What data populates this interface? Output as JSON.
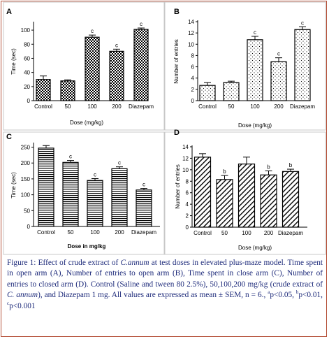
{
  "chart_data": [
    {
      "panel": "A",
      "type": "bar",
      "pattern": "checker",
      "categories": [
        "Control",
        "50",
        "100",
        "200",
        "Diazepam"
      ],
      "values": [
        30,
        28,
        90,
        70,
        101
      ],
      "errors": [
        5,
        1.5,
        3,
        3,
        2
      ],
      "sig": [
        "",
        "",
        "c",
        "c",
        "c"
      ],
      "ylim": [
        0,
        110
      ],
      "yticks": [
        0,
        20,
        40,
        60,
        80,
        100
      ],
      "ylabel": "Time (sec)",
      "xlabel": "Dose (mg/kg)"
    },
    {
      "panel": "B",
      "type": "bar",
      "pattern": "dots",
      "categories": [
        "Control",
        "50",
        "100",
        "200",
        "Diazepam"
      ],
      "values": [
        2.7,
        3.2,
        10.8,
        6.9,
        12.6
      ],
      "errors": [
        0.5,
        0.25,
        0.6,
        0.7,
        0.5
      ],
      "sig": [
        "",
        "",
        "c",
        "c",
        "c"
      ],
      "ylim": [
        0,
        14
      ],
      "yticks": [
        0,
        2,
        4,
        6,
        8,
        10,
        12,
        14
      ],
      "ylabel": "Number of entries",
      "xlabel": "Dose (mg/kg)"
    },
    {
      "panel": "C",
      "type": "bar",
      "pattern": "hstripe",
      "categories": [
        "Control",
        "50",
        "100",
        "200",
        "Diazepam"
      ],
      "values": [
        247,
        202,
        145,
        182,
        115
      ],
      "errors": [
        8,
        6,
        6,
        6,
        5
      ],
      "sig": [
        "",
        "c",
        "c",
        "c",
        "c"
      ],
      "ylim": [
        0,
        260
      ],
      "yticks": [
        0,
        50,
        100,
        150,
        200,
        250
      ],
      "ylabel": "Time (sec)",
      "xlabel": "Dose in mg/kg"
    },
    {
      "panel": "D",
      "type": "bar",
      "pattern": "diag",
      "categories": [
        "Control",
        "50",
        "100",
        "200",
        "Diazepam"
      ],
      "values": [
        12.2,
        8.3,
        11.0,
        9.1,
        9.7
      ],
      "errors": [
        0.6,
        0.7,
        1.2,
        0.7,
        0.4
      ],
      "sig": [
        "",
        "b",
        "",
        "b",
        "b"
      ],
      "ylim": [
        0,
        14
      ],
      "yticks": [
        0,
        2,
        4,
        6,
        8,
        10,
        12,
        14
      ],
      "ylabel": "Number of entries",
      "xlabel": "Dose (mg/kg)"
    }
  ],
  "caption": {
    "figure_label": "Figure 1:",
    "text_1": " Effect of crude extract of ",
    "species": "C.annum",
    "text_2": " at test doses in elevated plus-maze model. Time spent in open arm (A), Number of entries to open arm (B), Time spent in close arm (C), Number of entries to closed arm (D). Control (Saline and  tween 80 2.5%), 50,100,200 mg/kg (crude extract of ",
    "species_2": "C. annum",
    "text_3": "), and Diazepam 1 mg. All values are expressed as mean ± SEM, n = 6., ",
    "sig_a": "a",
    "p_a": "p<0.05, ",
    "sig_b": "b",
    "p_b": "p<0.01, ",
    "sig_c": "c",
    "p_c": "p<0.001"
  },
  "colors": {
    "border": "#b5523b",
    "caption": "#1d2a7a",
    "bar_stroke": "#000000"
  }
}
